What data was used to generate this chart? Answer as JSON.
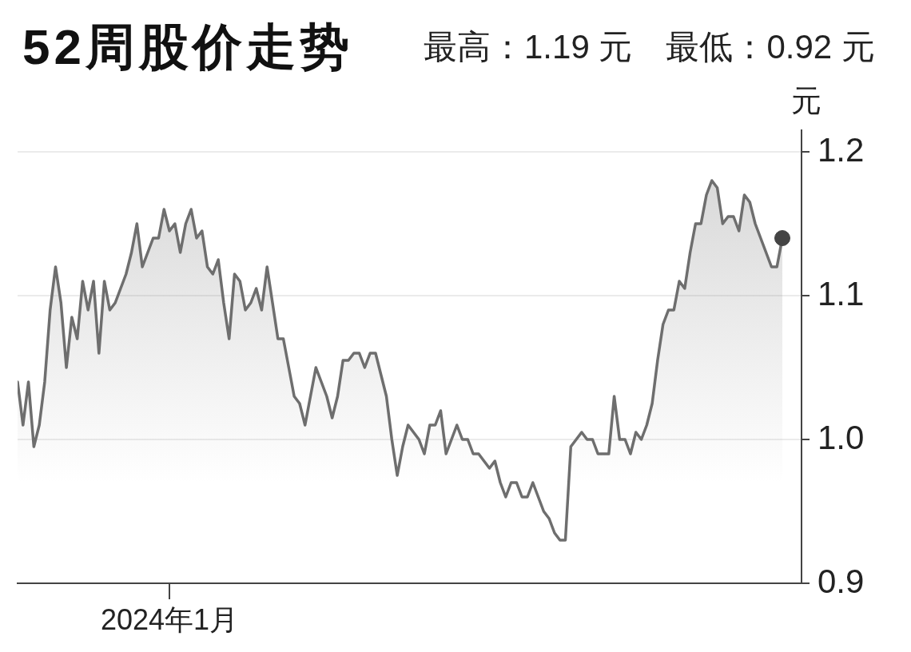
{
  "chart_data": {
    "type": "area",
    "title": "52周股价走势",
    "subtitle": "最高：1.19 元　最低：0.92 元",
    "ylabel": "元",
    "categories": [
      null,
      null,
      null,
      null,
      null,
      null,
      null,
      null,
      null,
      null,
      null,
      null,
      null,
      null,
      null,
      null,
      null,
      null,
      null,
      null,
      null,
      null,
      null,
      null,
      null,
      null,
      null,
      null,
      "2024年1月",
      null,
      null,
      null,
      null,
      null,
      null,
      null,
      null,
      null,
      null,
      null,
      null,
      null,
      null,
      null,
      null,
      null,
      null,
      null,
      null,
      null,
      null,
      null,
      null,
      null,
      null,
      null,
      null,
      null,
      null,
      null,
      null,
      null,
      null,
      null,
      null,
      null,
      null,
      null,
      null,
      null,
      null,
      null,
      null,
      null,
      null,
      null,
      null,
      null,
      null,
      null,
      null,
      null,
      null,
      null,
      null,
      null,
      null,
      null,
      null,
      null,
      null,
      null,
      null,
      null,
      null,
      null,
      null,
      null,
      null,
      null,
      null,
      null,
      null,
      null,
      null,
      null,
      null,
      null,
      null,
      null,
      null,
      null,
      null,
      null,
      null,
      null,
      null,
      null,
      null,
      null,
      null,
      null,
      null,
      null,
      null,
      null,
      null,
      null,
      null,
      null,
      null,
      null,
      null,
      null,
      null,
      null,
      null,
      null,
      null,
      null,
      null,
      null
    ],
    "series": [
      {
        "color": "#6e6e6e",
        "values": [
          1.04,
          1.01,
          1.04,
          0.995,
          1.01,
          1.04,
          1.09,
          1.12,
          1.095,
          1.05,
          1.085,
          1.07,
          1.11,
          1.09,
          1.11,
          1.06,
          1.11,
          1.09,
          1.095,
          1.105,
          1.115,
          1.13,
          1.15,
          1.12,
          1.13,
          1.14,
          1.14,
          1.16,
          1.145,
          1.15,
          1.13,
          1.15,
          1.16,
          1.14,
          1.145,
          1.12,
          1.115,
          1.125,
          1.095,
          1.07,
          1.115,
          1.11,
          1.09,
          1.095,
          1.105,
          1.09,
          1.12,
          1.095,
          1.07,
          1.07,
          1.05,
          1.03,
          1.025,
          1.01,
          1.03,
          1.05,
          1.04,
          1.03,
          1.015,
          1.03,
          1.055,
          1.055,
          1.06,
          1.06,
          1.05,
          1.06,
          1.06,
          1.045,
          1.03,
          1.0,
          0.975,
          0.995,
          1.01,
          1.005,
          1.0,
          0.99,
          1.01,
          1.01,
          1.02,
          0.99,
          1.0,
          1.01,
          1.0,
          1.0,
          0.99,
          0.99,
          0.985,
          0.98,
          0.985,
          0.97,
          0.96,
          0.97,
          0.97,
          0.96,
          0.96,
          0.97,
          0.96,
          0.95,
          0.945,
          0.935,
          0.93,
          0.93,
          0.995,
          1.0,
          1.005,
          1.0,
          1.0,
          0.99,
          0.99,
          0.99,
          1.03,
          1.0,
          1.0,
          0.99,
          1.005,
          1.0,
          1.01,
          1.025,
          1.055,
          1.08,
          1.09,
          1.09,
          1.11,
          1.105,
          1.13,
          1.15,
          1.15,
          1.17,
          1.18,
          1.175,
          1.15,
          1.155,
          1.155,
          1.145,
          1.17,
          1.165,
          1.15,
          1.14,
          1.13,
          1.12,
          1.12,
          1.14
        ]
      },
      {
        "type": "scatter",
        "color": "#444444",
        "marker": "circle",
        "values": [
          null,
          null,
          null,
          null,
          null,
          null,
          null,
          null,
          null,
          null,
          null,
          null,
          null,
          null,
          null,
          null,
          null,
          null,
          null,
          null,
          null,
          null,
          null,
          null,
          null,
          null,
          null,
          null,
          null,
          null,
          null,
          null,
          null,
          null,
          null,
          null,
          null,
          null,
          null,
          null,
          null,
          null,
          null,
          null,
          null,
          null,
          null,
          null,
          null,
          null,
          null,
          null,
          null,
          null,
          null,
          null,
          null,
          null,
          null,
          null,
          null,
          null,
          null,
          null,
          null,
          null,
          null,
          null,
          null,
          null,
          null,
          null,
          null,
          null,
          null,
          null,
          null,
          null,
          null,
          null,
          null,
          null,
          null,
          null,
          null,
          null,
          null,
          null,
          null,
          null,
          null,
          null,
          null,
          null,
          null,
          null,
          null,
          null,
          null,
          null,
          null,
          null,
          null,
          null,
          null,
          null,
          null,
          null,
          null,
          null,
          null,
          null,
          null,
          null,
          null,
          null,
          null,
          null,
          null,
          null,
          null,
          null,
          null,
          null,
          null,
          null,
          null,
          null,
          null,
          null,
          null,
          null,
          null,
          null,
          null,
          null,
          null,
          null,
          null,
          null,
          null,
          1.14
        ]
      }
    ],
    "ylim": [
      0.9,
      1.215
    ],
    "yticks": [
      0.9,
      {
        "value": 1,
        "label": "1.0"
      },
      1.1,
      1.2
    ],
    "grid": "y"
  }
}
